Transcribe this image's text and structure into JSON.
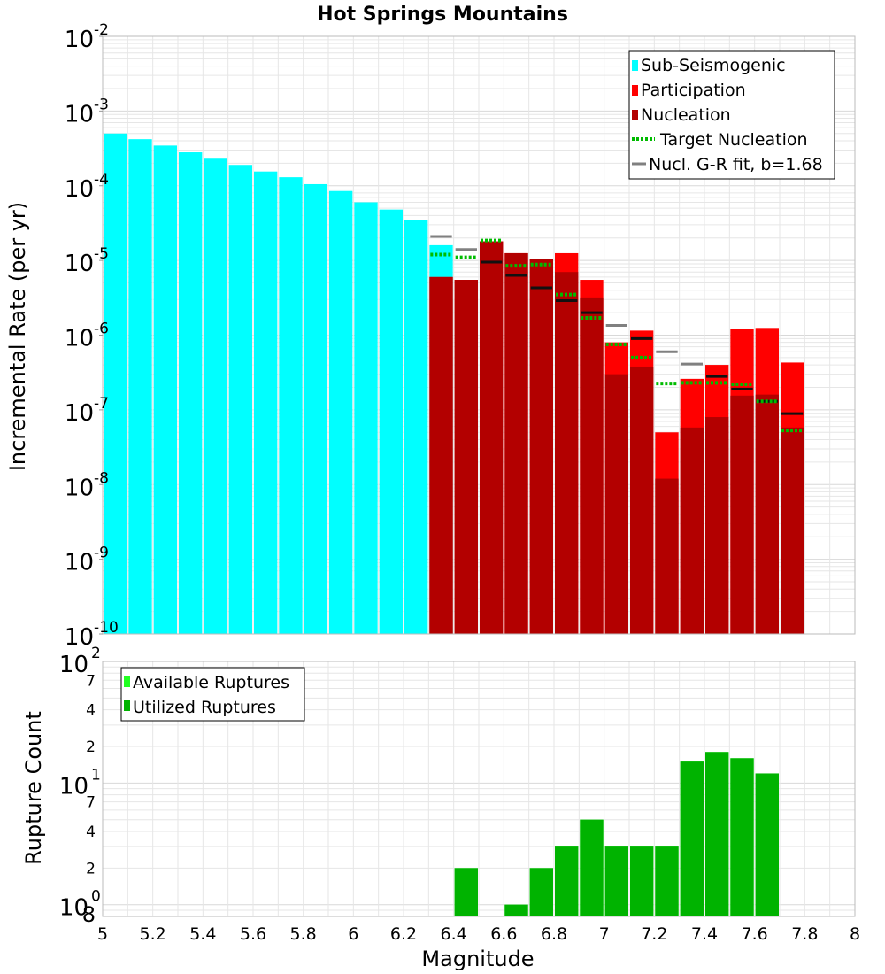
{
  "chart_data": [
    {
      "type": "bar",
      "title": "Hot Springs Mountains",
      "xlabel": "",
      "ylabel": "Incremental Rate (per yr)",
      "yscale": "log",
      "xlim": [
        5,
        8
      ],
      "ylim": [
        1e-10,
        0.01
      ],
      "grid": true,
      "legend_position": "top-right",
      "legend": [
        "Sub-Seismogenic",
        "Participation",
        "Nucleation",
        "Target Nucleation",
        "Nucl. G-R fit, b=1.68"
      ],
      "y_ticks": [
        {
          "base": "10",
          "exp": "-10"
        },
        {
          "base": "10",
          "exp": "-9"
        },
        {
          "base": "10",
          "exp": "-8"
        },
        {
          "base": "10",
          "exp": "-7"
        },
        {
          "base": "10",
          "exp": "-6"
        },
        {
          "base": "10",
          "exp": "-5"
        },
        {
          "base": "10",
          "exp": "-4"
        },
        {
          "base": "10",
          "exp": "-3"
        },
        {
          "base": "10",
          "exp": "-2"
        }
      ],
      "sub_seismogenic": {
        "x": [
          5.05,
          5.15,
          5.25,
          5.35,
          5.45,
          5.55,
          5.65,
          5.75,
          5.85,
          5.95,
          6.05,
          6.15,
          6.25,
          6.35
        ],
        "values": [
          0.0005,
          0.00042,
          0.000345,
          0.00028,
          0.00023,
          0.00019,
          0.000155,
          0.00013,
          0.000105,
          8.5e-05,
          6e-05,
          4.8e-05,
          3.5e-05,
          1.6e-05
        ]
      },
      "participation": {
        "x": [
          6.35,
          6.45,
          6.55,
          6.65,
          6.75,
          6.85,
          6.95,
          7.05,
          7.15,
          7.25,
          7.35,
          7.45,
          7.55,
          7.65,
          7.75
        ],
        "values": [
          6e-06,
          5.5e-06,
          1.8e-05,
          1.25e-05,
          1.05e-05,
          1.25e-05,
          5.5e-06,
          8e-07,
          1.15e-06,
          5e-08,
          2.6e-07,
          4e-07,
          1.2e-06,
          1.25e-06,
          4.3e-07
        ]
      },
      "nucleation": {
        "x": [
          6.35,
          6.45,
          6.55,
          6.65,
          6.75,
          6.85,
          6.95,
          7.05,
          7.15,
          7.25,
          7.35,
          7.45,
          7.55,
          7.65,
          7.75
        ],
        "values": [
          6e-06,
          5.5e-06,
          1.8e-05,
          1.25e-05,
          1.05e-05,
          7e-06,
          3.2e-06,
          3e-07,
          3.8e-07,
          1.2e-08,
          5.8e-08,
          8e-08,
          1.55e-07,
          1.6e-07,
          5.8e-08
        ]
      },
      "target_nucleation": {
        "x": [
          6.35,
          6.45,
          6.55,
          6.65,
          6.75,
          6.85,
          6.95,
          7.05,
          7.15,
          7.25,
          7.35,
          7.45,
          7.55,
          7.65,
          7.75
        ],
        "values": [
          1.2e-05,
          1.1e-05,
          1.85e-05,
          8.5e-06,
          8.8e-06,
          3.5e-06,
          1.7e-06,
          7.5e-07,
          5e-07,
          2.25e-07,
          2.3e-07,
          2.3e-07,
          2.2e-07,
          1.3e-07,
          5.3e-08
        ]
      },
      "gr_fit": {
        "x": [
          6.35,
          6.45,
          6.55,
          6.65,
          6.75,
          6.85,
          6.95,
          7.05,
          7.15,
          7.25,
          7.35,
          7.45,
          7.55,
          7.65,
          7.75
        ],
        "values": [
          2.1e-05,
          1.4e-05,
          9.5e-06,
          6.3e-06,
          4.3e-06,
          2.9e-06,
          2e-06,
          1.35e-06,
          9e-07,
          6e-07,
          4.1e-07,
          2.8e-07,
          1.9e-07,
          1.3e-07,
          8.9e-08
        ]
      }
    },
    {
      "type": "bar",
      "title": "",
      "xlabel": "Magnitude",
      "ylabel": "Rupture Count",
      "yscale": "log",
      "xlim": [
        5,
        8
      ],
      "ylim": [
        0.8,
        100
      ],
      "grid": true,
      "legend_position": "top-left",
      "legend": [
        "Available Ruptures",
        "Utilized Ruptures"
      ],
      "x_ticks": [
        "5",
        "5.2",
        "5.4",
        "5.6",
        "5.8",
        "6",
        "6.2",
        "6.4",
        "6.6",
        "6.8",
        "7",
        "7.2",
        "7.4",
        "7.6",
        "7.8",
        "8"
      ],
      "y_major_ticks": [
        {
          "value": 1,
          "base": "10",
          "exp": "0"
        },
        {
          "value": 10,
          "base": "10",
          "exp": "1"
        },
        {
          "value": 100,
          "base": "10",
          "exp": "2"
        }
      ],
      "y_minor_ticks": [
        {
          "value": 0.8,
          "label": "8"
        },
        {
          "value": 2,
          "label": "2"
        },
        {
          "value": 4,
          "label": "4"
        },
        {
          "value": 7,
          "label": "7"
        },
        {
          "value": 20,
          "label": "2"
        },
        {
          "value": 40,
          "label": "4"
        },
        {
          "value": 70,
          "label": "7"
        }
      ],
      "x": [
        6.45,
        6.55,
        6.65,
        6.75,
        6.85,
        6.95,
        7.05,
        7.15,
        7.25,
        7.35,
        7.45,
        7.55,
        7.65
      ],
      "available": [
        2,
        0,
        1,
        2,
        3,
        5,
        3,
        3,
        3,
        15,
        18,
        16,
        12
      ],
      "utilized": [
        2,
        0,
        1,
        2,
        3,
        5,
        3,
        3,
        3,
        15,
        18,
        16,
        12
      ]
    }
  ],
  "colors": {
    "sub_seismogenic": "#00ffff",
    "participation": "#ff0000",
    "nucleation": "#b30000",
    "target_nucleation": "#00bb00",
    "gr_fit": "#808080",
    "gr_fit_over_bar": "#111111",
    "available": "#22ff22",
    "utilized": "#00b300",
    "grid": "#e6e6e6",
    "frame": "#bbbbbb",
    "text": "#000000"
  }
}
